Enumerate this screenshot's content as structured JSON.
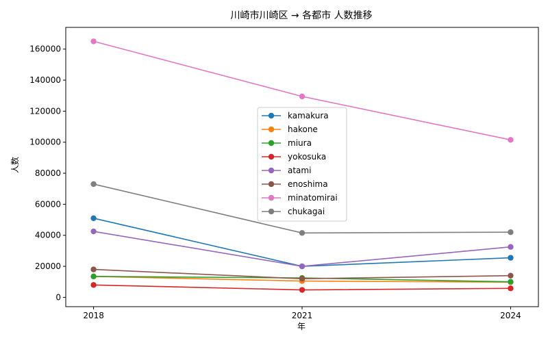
{
  "chart_data": {
    "type": "line",
    "title": "川崎市川崎区 → 各都市 人数推移",
    "xlabel": "年",
    "ylabel": "人数",
    "x": [
      2018,
      2021,
      2024
    ],
    "x_ticks": [
      "2018",
      "2021",
      "2024"
    ],
    "ylim": [
      -6000,
      174000
    ],
    "y_ticks": [
      0,
      20000,
      40000,
      60000,
      80000,
      100000,
      120000,
      140000,
      160000
    ],
    "legend_position": "center",
    "grid": false,
    "series": [
      {
        "name": "kamakura",
        "color": "#1f77b4",
        "values": [
          51000,
          20000,
          25500
        ]
      },
      {
        "name": "hakone",
        "color": "#ff7f0e",
        "values": [
          13500,
          10500,
          9800
        ]
      },
      {
        "name": "miura",
        "color": "#2ca02c",
        "values": [
          13500,
          12500,
          10000
        ]
      },
      {
        "name": "yokosuka",
        "color": "#d62728",
        "values": [
          8000,
          4800,
          5800
        ]
      },
      {
        "name": "atami",
        "color": "#9467bd",
        "values": [
          42500,
          20000,
          32500
        ]
      },
      {
        "name": "enoshima",
        "color": "#8c564b",
        "values": [
          18000,
          12000,
          14000
        ]
      },
      {
        "name": "minatomirai",
        "color": "#e377c2",
        "values": [
          165000,
          129500,
          101500
        ]
      },
      {
        "name": "chukagai",
        "color": "#7f7f7f",
        "values": [
          73000,
          41500,
          42000
        ]
      }
    ]
  }
}
